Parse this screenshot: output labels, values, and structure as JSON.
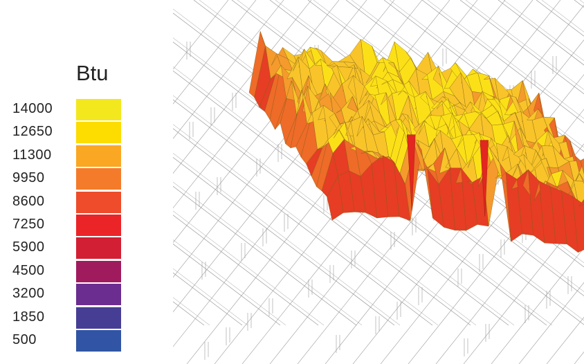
{
  "chart_data": {
    "type": "surface",
    "legend": {
      "unit": "Btu",
      "levels": [
        {
          "value": "14000",
          "color": "#f3e81d"
        },
        {
          "value": "12650",
          "color": "#fddc00"
        },
        {
          "value": "11300",
          "color": "#faa724"
        },
        {
          "value": "9950",
          "color": "#f47b2a"
        },
        {
          "value": "8600",
          "color": "#ee4c2a"
        },
        {
          "value": "7250",
          "color": "#eb2428"
        },
        {
          "value": "5900",
          "color": "#d21f33"
        },
        {
          "value": "4500",
          "color": "#a01b5e"
        },
        {
          "value": "3200",
          "color": "#6b2d8f"
        },
        {
          "value": "1850",
          "color": "#463e95"
        },
        {
          "value": "500",
          "color": "#3155a4"
        }
      ]
    },
    "surface_colors": [
      "#f7ee3a",
      "#fbe018",
      "#f8c42a",
      "#f59a2c",
      "#ef6b28",
      "#e63d24"
    ],
    "wireframe_color": "#9a9a9a"
  }
}
